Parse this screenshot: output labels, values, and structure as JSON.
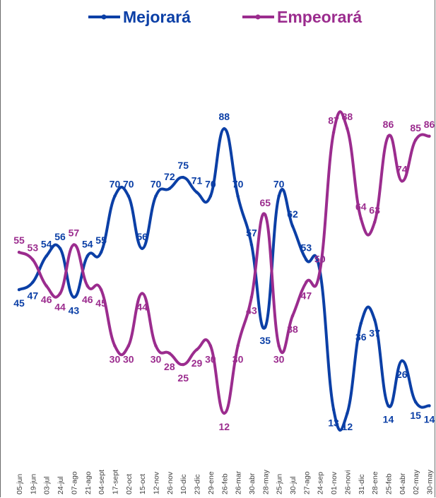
{
  "chart_data": {
    "type": "line",
    "title": "",
    "xlabel": "",
    "ylabel": "",
    "ylim": [
      0,
      100
    ],
    "grid": false,
    "legend_position": "top",
    "x": [
      "05-jun",
      "19-jun",
      "03-jul",
      "24-jul",
      "07-ago",
      "21-ago",
      "04-sept",
      "17-sept",
      "02-oct",
      "15-oct",
      "12-nov",
      "26-nov",
      "10-dic",
      "23-dic",
      "29-ene",
      "26-feb",
      "26-mar",
      "30-abr",
      "28-may",
      "25-jun",
      "30-jul",
      "27-ago",
      "24-sep",
      "01-nov",
      "26-novi",
      "31-dic",
      "28-ene",
      "25-feb",
      "04-abr",
      "02-may",
      "30-may"
    ],
    "series": [
      {
        "name": "Mejorará",
        "color": "#0B3FA6",
        "values": [
          45,
          47,
          54,
          56,
          43,
          54,
          55,
          70,
          70,
          56,
          70,
          72,
          75,
          71,
          70,
          88,
          70,
          57,
          35,
          70,
          62,
          53,
          50,
          13,
          12,
          36,
          37,
          14,
          26,
          15,
          14
        ]
      },
      {
        "name": "Empeorará",
        "color": "#9B2C8E",
        "values": [
          55,
          53,
          46,
          44,
          57,
          46,
          45,
          30,
          30,
          44,
          30,
          28,
          25,
          29,
          30,
          12,
          30,
          43,
          65,
          30,
          38,
          47,
          50,
          87,
          88,
          64,
          63,
          86,
          74,
          85,
          86
        ]
      }
    ]
  }
}
